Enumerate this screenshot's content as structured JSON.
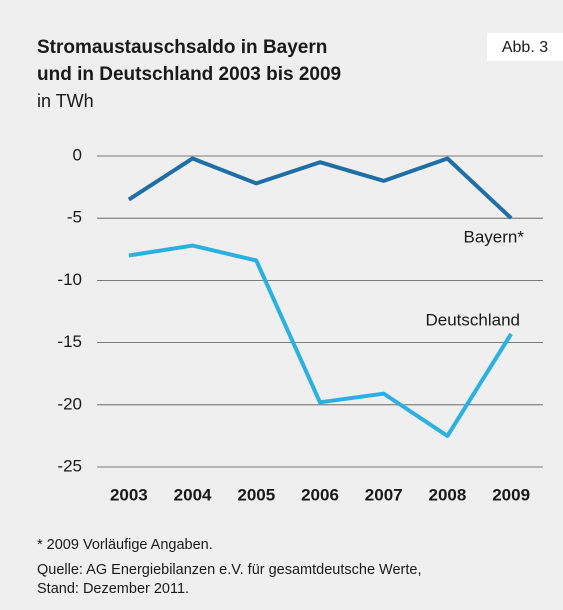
{
  "chart_data": {
    "type": "line",
    "title": [
      "Stromaustauschsaldo in Bayern",
      "und in Deutschland 2003 bis 2009"
    ],
    "subtitle": "in TWh",
    "badge": "Abb. 3",
    "categories": [
      "2003",
      "2004",
      "2005",
      "2006",
      "2007",
      "2008",
      "2009"
    ],
    "series": [
      {
        "name": "Bayern*",
        "color": "#1f6fa6",
        "values": [
          -3.5,
          -0.2,
          -2.2,
          -0.5,
          -2.0,
          -0.2,
          -5.0
        ]
      },
      {
        "name": "Deutschland",
        "color": "#2ab1e2",
        "values": [
          -8.0,
          -7.2,
          -8.4,
          -19.8,
          -19.1,
          -22.5,
          -14.3
        ]
      }
    ],
    "ylim": [
      -25,
      0
    ],
    "yticks": [
      0,
      -5,
      -10,
      -15,
      -20,
      -25
    ],
    "grid": true,
    "footnotes": [
      "* 2009 Vorläufige Angaben.",
      "Quelle: AG Energiebilanzen e.V. für gesamtdeutsche Werte,",
      "Stand: Dezember 2011."
    ]
  }
}
